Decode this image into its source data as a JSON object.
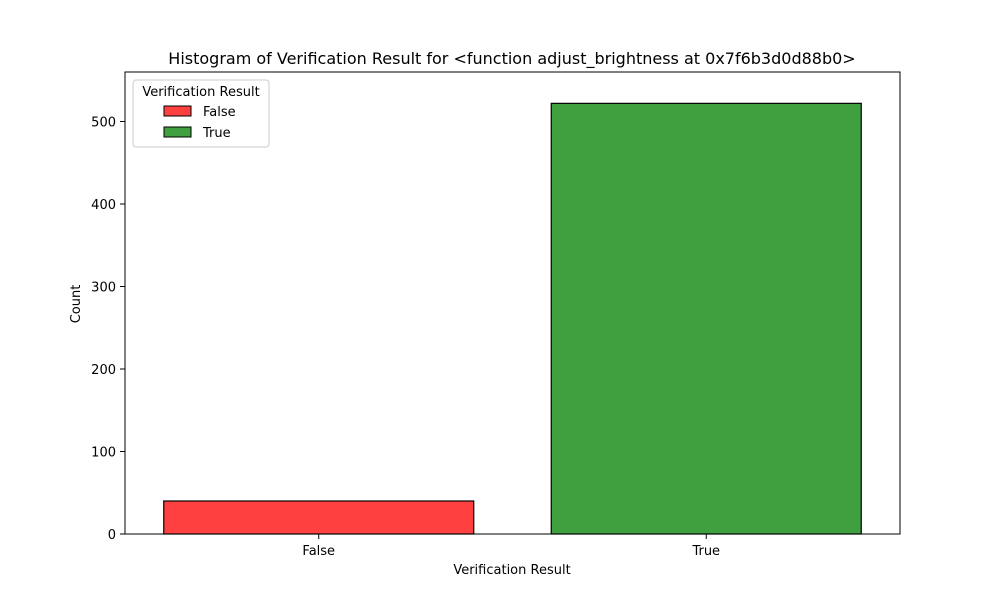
{
  "chart_data": {
    "type": "bar",
    "title": "Histogram of Verification Result for <function adjust_brightness at 0x7f6b3d0d88b0>",
    "xlabel": "Verification Result",
    "ylabel": "Count",
    "categories": [
      "False",
      "True"
    ],
    "values": [
      40,
      522
    ],
    "colors": [
      "#ff4040",
      "#40a040"
    ],
    "ylim": [
      0,
      560
    ],
    "yticks": [
      0,
      100,
      200,
      300,
      400,
      500
    ],
    "grid": false,
    "legend": {
      "title": "Verification Result",
      "placement": "top-left",
      "entries": [
        {
          "label": "False",
          "color": "#ff4040"
        },
        {
          "label": "True",
          "color": "#40a040"
        }
      ]
    }
  }
}
